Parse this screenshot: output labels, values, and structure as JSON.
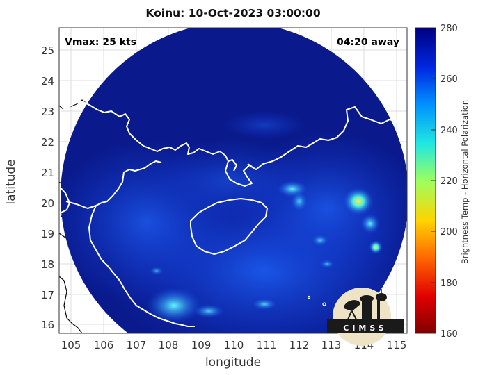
{
  "title": "Koinu: 10-Oct-2023 03:00:00",
  "vmax_label": "Vmax: 25 kts",
  "time_away": "04:20 away",
  "xlabel": "longitude",
  "ylabel": "latitude",
  "xticks": [
    "105",
    "106",
    "107",
    "108",
    "109",
    "110",
    "111",
    "112",
    "113",
    "114",
    "115"
  ],
  "yticks": [
    "16",
    "17",
    "18",
    "19",
    "20",
    "21",
    "22",
    "23",
    "24",
    "25"
  ],
  "colorbar": {
    "label": "Brightness Temp - Horizontal Polarization",
    "ticks": [
      "160",
      "180",
      "200",
      "220",
      "240",
      "260",
      "280"
    ]
  },
  "logo_text": "CIMSS",
  "colors": {
    "background_field": "#0a1a8c",
    "coast": "#ffffff",
    "land_border": "#000000"
  }
}
